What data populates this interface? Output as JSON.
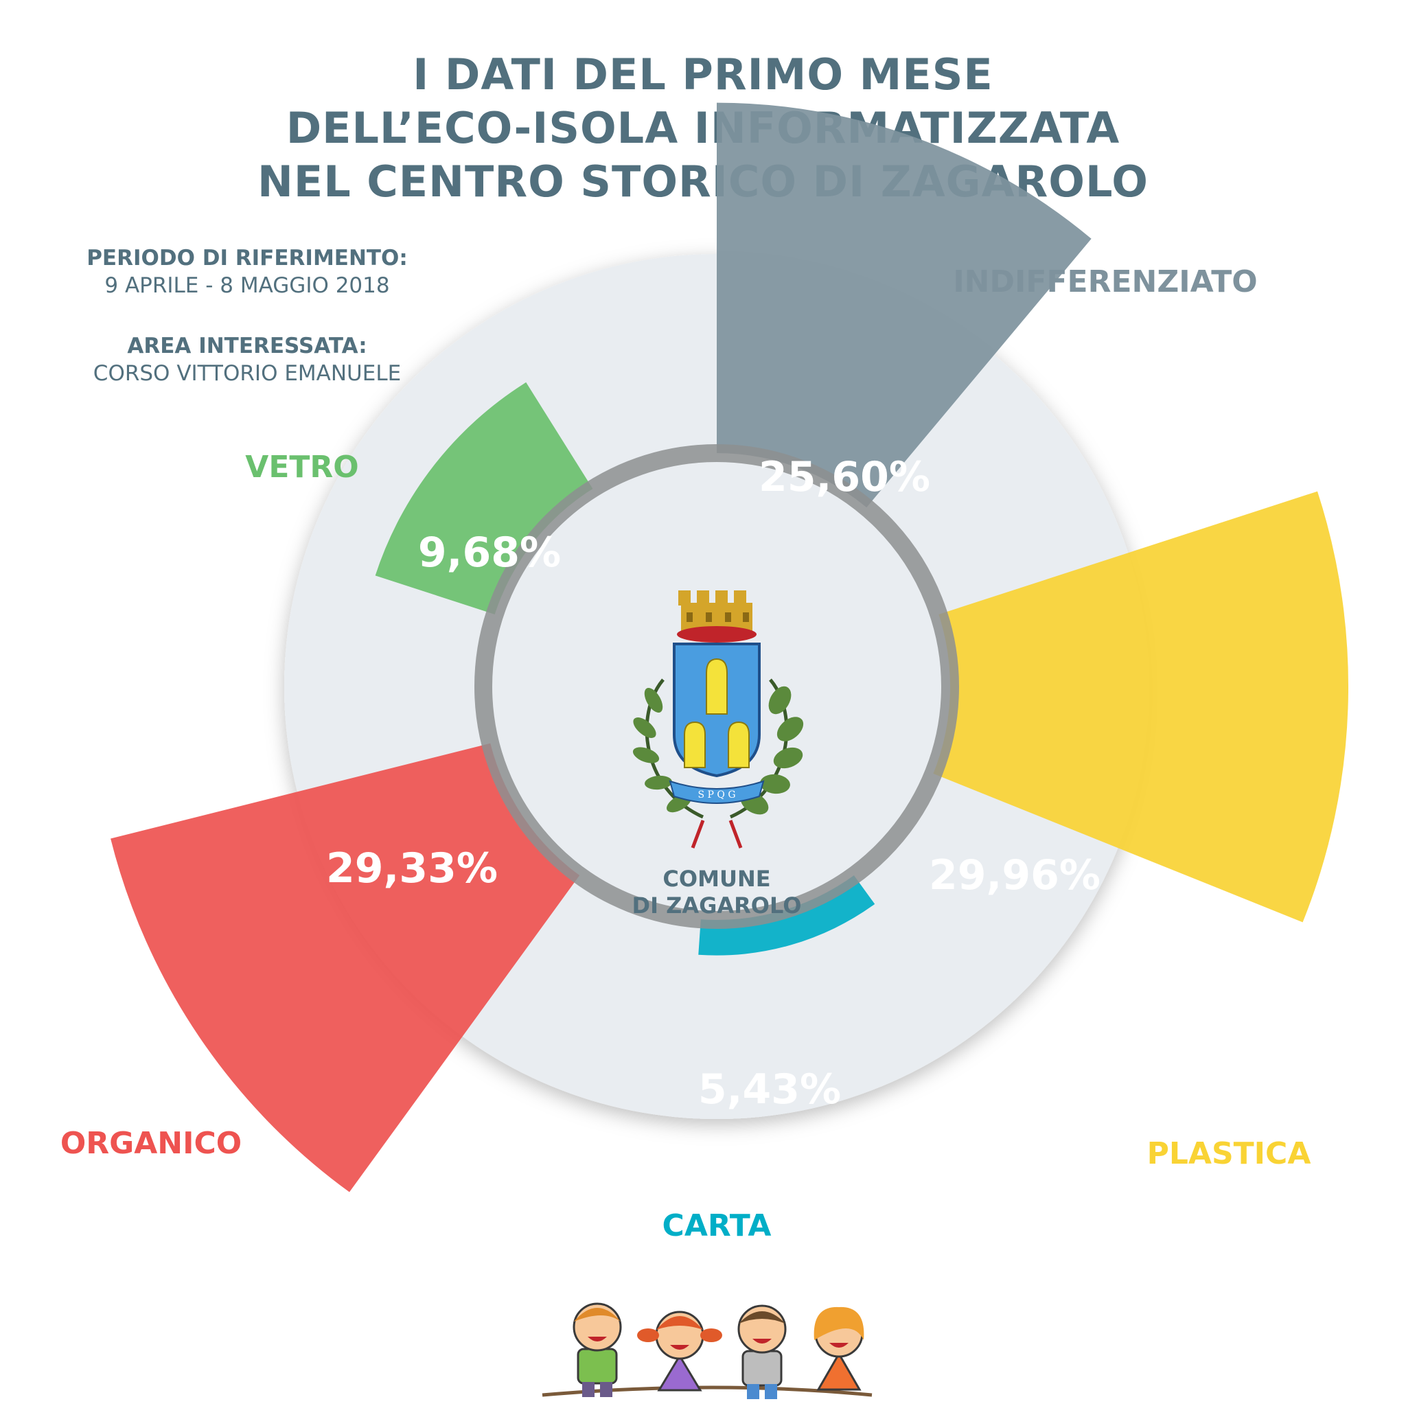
{
  "title": {
    "line1": "I DATI DEL PRIMO MESE",
    "line2": "DELL’ECO-ISOLA INFORMATIZZATA",
    "line3": "NEL CENTRO STORICO DI ZAGAROLO"
  },
  "period": {
    "label": "PERIODO DI RIFERIMENTO:",
    "value": "9 APRILE - 8 MAGGIO 2018"
  },
  "area": {
    "label": "AREA INTERESSATA:",
    "value": "CORSO VITTORIO EMANUELE"
  },
  "center": {
    "line1": "COMUNE",
    "line2": "DI ZAGAROLO",
    "emblem_motto": "S P Q G"
  },
  "colors": {
    "title": "#52707e",
    "disc": "#e9edf1",
    "ring": "#8d8f91"
  },
  "chart_data": {
    "type": "polar-area",
    "title": "I DATI DEL PRIMO MESE DELL’ECO-ISOLA INFORMATIZZATA NEL CENTRO STORICO DI ZAGAROLO",
    "unit": "%",
    "series": [
      {
        "category": "INDIFFERENZIATO",
        "value": 25.6,
        "label": "25,60%",
        "color": "#7e929d"
      },
      {
        "category": "PLASTICA",
        "value": 29.96,
        "label": "29,96%",
        "color": "#f9d334"
      },
      {
        "category": "CARTA",
        "value": 5.43,
        "label": "5,43%",
        "color": "#00aec7"
      },
      {
        "category": "ORGANICO",
        "value": 29.33,
        "label": "29,33%",
        "color": "#ee5350"
      },
      {
        "category": "VETRO",
        "value": 9.68,
        "label": "9,68%",
        "color": "#6ac06e"
      }
    ]
  }
}
